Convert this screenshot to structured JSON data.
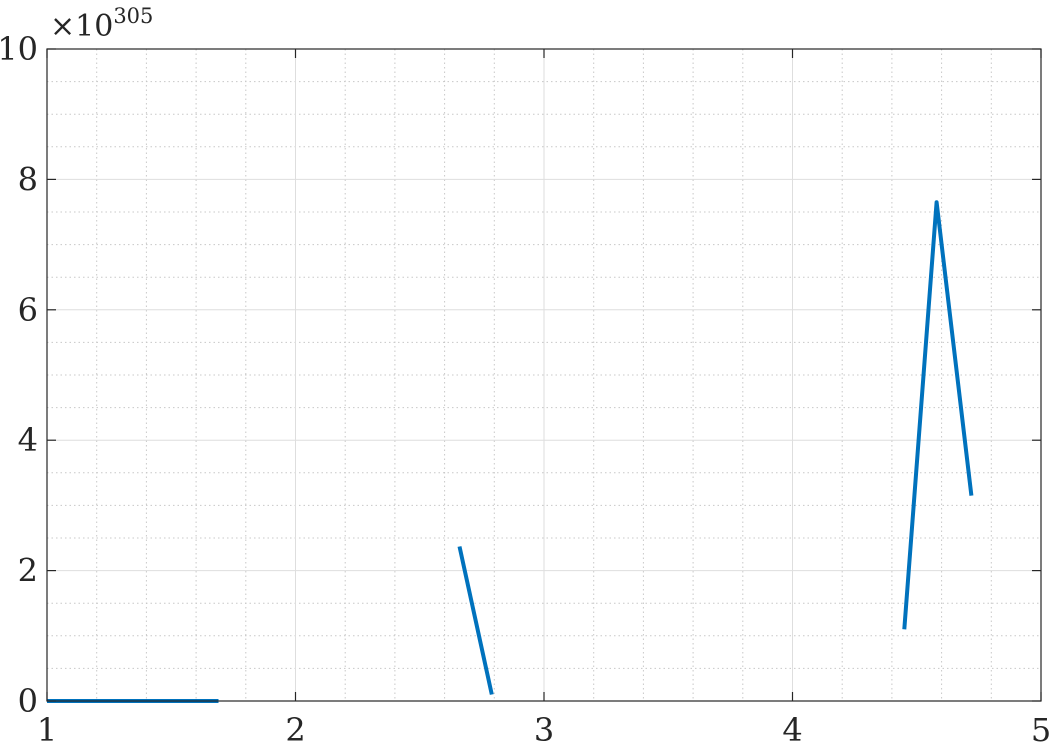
{
  "chart_data": {
    "type": "line",
    "title": "",
    "xlabel": "",
    "ylabel": "",
    "xlim": [
      1,
      5
    ],
    "ylim": [
      0,
      10
    ],
    "xticks": [
      1,
      2,
      3,
      4,
      5
    ],
    "yticks": [
      0,
      2,
      4,
      6,
      8,
      10
    ],
    "x_tick_labels": [
      "1",
      "2",
      "3",
      "4",
      "5"
    ],
    "y_tick_labels": [
      "0",
      "2",
      "4",
      "6",
      "8",
      "10"
    ],
    "y_exponent": {
      "base": "×10",
      "power": "305"
    },
    "grid": true,
    "minor_grid": true,
    "line_color": "#0072bd",
    "segments": [
      {
        "x": [
          1.0,
          1.69
        ],
        "y": [
          0.0,
          0.0
        ]
      },
      {
        "x": [
          2.66,
          2.79
        ],
        "y": [
          2.37,
          0.1
        ]
      },
      {
        "x": [
          4.45,
          4.58,
          4.72
        ],
        "y": [
          1.1,
          7.65,
          3.15
        ]
      }
    ]
  }
}
